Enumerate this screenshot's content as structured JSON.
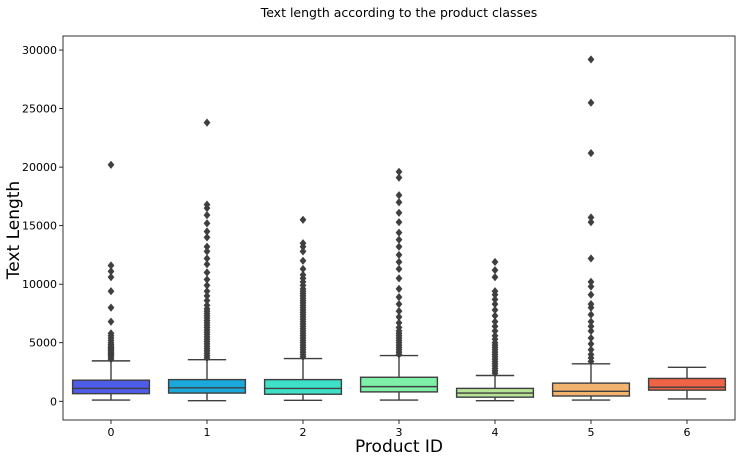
{
  "chart_data": {
    "type": "box",
    "title": "Text length according to the product classes",
    "xlabel": "Product ID",
    "ylabel": "Text Length",
    "ylim": [
      -1600,
      31200
    ],
    "yticks": [
      0,
      5000,
      10000,
      15000,
      20000,
      25000,
      30000
    ],
    "grid": false,
    "categories": [
      "0",
      "1",
      "2",
      "3",
      "4",
      "5",
      "6"
    ],
    "boxes": [
      {
        "category": "0",
        "color": "#4f5ce8",
        "whislo": 100,
        "q1": 650,
        "median": 1100,
        "q3": 1800,
        "whishi": 3450,
        "outliers": [
          3600,
          3750,
          3900,
          4000,
          4100,
          4200,
          4300,
          4400,
          4500,
          4600,
          4700,
          4850,
          5000,
          5200,
          5400,
          5600,
          5800,
          6800,
          8000,
          9400,
          10600,
          11100,
          11600,
          20200
        ]
      },
      {
        "category": "1",
        "color": "#1ba9dc",
        "whislo": 50,
        "q1": 700,
        "median": 1150,
        "q3": 1850,
        "whishi": 3550,
        "outliers": [
          3700,
          3900,
          4100,
          4300,
          4500,
          4700,
          4900,
          5100,
          5300,
          5500,
          5700,
          5900,
          6100,
          6300,
          6500,
          6700,
          6900,
          7100,
          7300,
          7500,
          7700,
          7900,
          8200,
          8600,
          9000,
          9400,
          9900,
          10400,
          11000,
          11700,
          12200,
          12800,
          13200,
          14000,
          14500,
          15200,
          15900,
          16500,
          16800,
          23800
        ]
      },
      {
        "category": "2",
        "color": "#3ee0c8",
        "whislo": 80,
        "q1": 600,
        "median": 1100,
        "q3": 1850,
        "whishi": 3650,
        "outliers": [
          3800,
          4000,
          4200,
          4400,
          4600,
          4800,
          5000,
          5200,
          5400,
          5600,
          5800,
          6000,
          6200,
          6400,
          6600,
          6800,
          7000,
          7200,
          7400,
          7600,
          7800,
          8000,
          8200,
          8400,
          8600,
          8800,
          9000,
          9200,
          9400,
          9600,
          9900,
          10200,
          10500,
          10800,
          11300,
          12000,
          12800,
          13200,
          13500,
          15500
        ]
      },
      {
        "category": "3",
        "color": "#7ff0a8",
        "whislo": 100,
        "q1": 800,
        "median": 1250,
        "q3": 2050,
        "whishi": 3900,
        "outliers": [
          4000,
          4200,
          4400,
          4600,
          4800,
          5000,
          5200,
          5400,
          5600,
          5800,
          6000,
          6300,
          6700,
          7200,
          7700,
          8300,
          8900,
          9600,
          10500,
          11300,
          11900,
          12500,
          13200,
          13800,
          14400,
          15300,
          16100,
          17000,
          17600,
          19100,
          19600
        ]
      },
      {
        "category": "4",
        "color": "#b7e496",
        "whislo": 50,
        "q1": 350,
        "median": 700,
        "q3": 1100,
        "whishi": 2200,
        "outliers": [
          2400,
          2600,
          2800,
          3000,
          3200,
          3400,
          3600,
          3800,
          4000,
          4200,
          4400,
          4600,
          4800,
          5000,
          5300,
          5600,
          6000,
          6400,
          6800,
          7300,
          7800,
          8300,
          8700,
          9100,
          9400,
          10600,
          11200,
          11900
        ]
      },
      {
        "category": "5",
        "color": "#f2b36e",
        "whislo": 100,
        "q1": 450,
        "median": 850,
        "q3": 1550,
        "whishi": 3200,
        "outliers": [
          3400,
          3700,
          4000,
          4400,
          4900,
          5400,
          6000,
          6400,
          6800,
          7400,
          8000,
          8300,
          9100,
          9800,
          10200,
          12200,
          15300,
          15700,
          21200,
          25500,
          29200
        ]
      },
      {
        "category": "6",
        "color": "#ef6347",
        "whislo": 200,
        "q1": 950,
        "median": 1200,
        "q3": 1950,
        "whishi": 2900,
        "outliers": []
      }
    ]
  }
}
